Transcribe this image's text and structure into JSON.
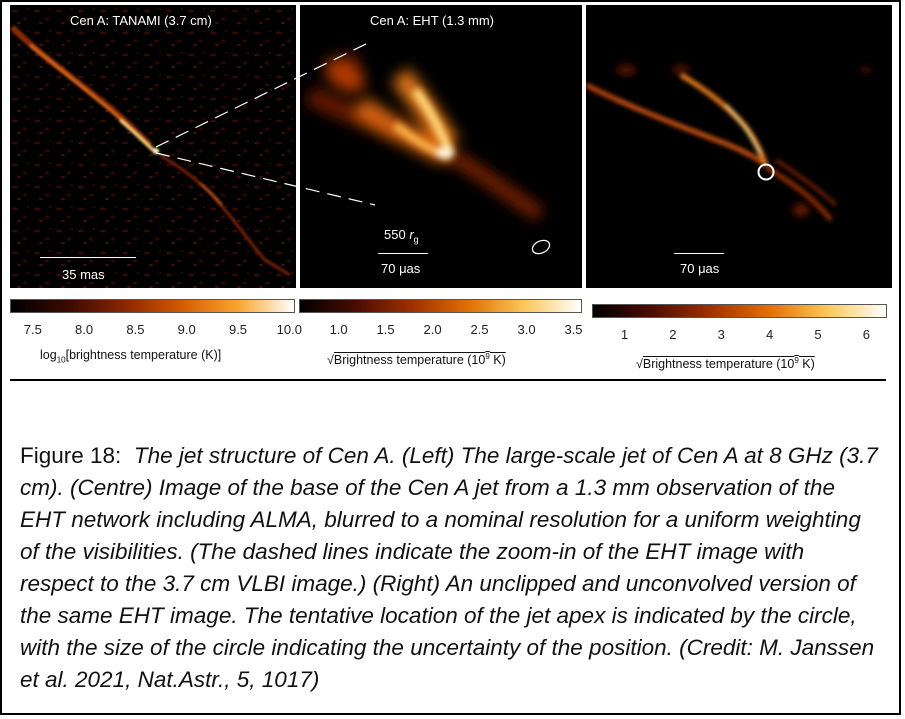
{
  "panels": [
    {
      "title": "Cen A: TANAMI (3.7 cm)",
      "scale_label": "35 mas"
    },
    {
      "title": "Cen A: EHT (1.3 mm)",
      "scale_top": "550",
      "scale_top_sub": "g",
      "scale_top_r": "r",
      "scale_label": "70 μas"
    },
    {
      "title": "",
      "scale_label": "70 μas"
    }
  ],
  "colorbars": [
    {
      "ticks": [
        "7.5",
        "8.0",
        "8.5",
        "9.0",
        "9.5",
        "10.0"
      ],
      "label_pre": "log",
      "label_sub": "10",
      "label_post": "[brightness temperature (K)]",
      "colors": [
        "#000000",
        "#3a0a00",
        "#8a2500",
        "#d45a00",
        "#f9a52a",
        "#ffffff"
      ]
    },
    {
      "ticks": [
        "1.0",
        "1.5",
        "2.0",
        "2.5",
        "3.0",
        "3.5"
      ],
      "label_sqrt": "√",
      "label_main": "Brightness temperature (10",
      "label_sup": "9",
      "label_end": " K)",
      "colors": [
        "#000000",
        "#4a0d00",
        "#a03000",
        "#e07000",
        "#fcc85a",
        "#ffffff"
      ]
    },
    {
      "ticks": [
        "1",
        "2",
        "3",
        "4",
        "5",
        "6"
      ],
      "label_sqrt": "√",
      "label_main": "Brightness temperature (10",
      "label_sup": "9",
      "label_end": " K)",
      "colors": [
        "#000000",
        "#4a0d00",
        "#a03000",
        "#e07000",
        "#fcc85a",
        "#ffffff"
      ]
    }
  ],
  "caption": {
    "lead": "Figure 18:",
    "body": "The jet structure of Cen A.  (Left)  The large-scale jet of Cen A at 8 GHz (3.7 cm).  (Centre)  Image of the base of the Cen A jet from a 1.3 mm observation of the EHT network including ALMA, blurred to a nominal resolution for a uniform weighting of the visibilities. (The dashed lines indicate the zoom-in of the EHT image with respect to the 3.7 cm VLBI image.)  (Right) An unclipped and unconvolved version of the same EHT image.  The tentative location of the jet apex is indicated by the circle, with the size of the circle indicating the uncertainty of the position. (Credit:  M. Janssen et al.  2021, Nat.Astr., 5, 1017)"
  }
}
